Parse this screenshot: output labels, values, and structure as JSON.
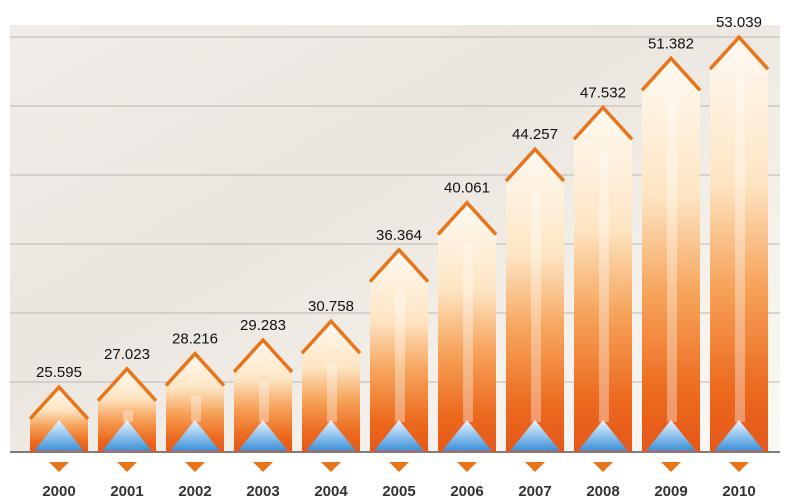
{
  "chart_data": {
    "type": "arrow-bar",
    "categories": [
      "2000",
      "2001",
      "2002",
      "2003",
      "2004",
      "2005",
      "2006",
      "2007",
      "2008",
      "2009",
      "2010"
    ],
    "values": [
      25.595,
      27.023,
      28.216,
      29.283,
      30.758,
      36.364,
      40.061,
      44.257,
      47.532,
      51.382,
      53.039
    ],
    "color": "#e8751a",
    "ylim": [
      20.5,
      54
    ]
  }
}
